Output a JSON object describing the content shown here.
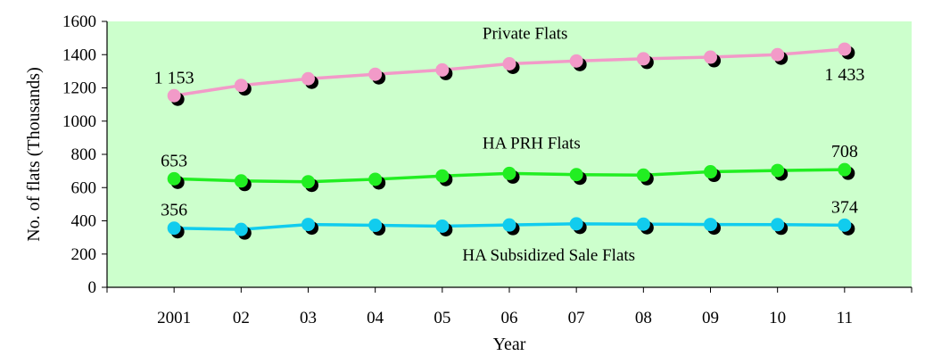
{
  "chart_data": {
    "type": "line",
    "categories": [
      "2001",
      "02",
      "03",
      "04",
      "05",
      "06",
      "07",
      "08",
      "09",
      "10",
      "11"
    ],
    "xlabel": "Year",
    "ylabel": "No. of flats (Thousands)",
    "ylim": [
      0,
      1600
    ],
    "yticks": [
      0,
      200,
      400,
      600,
      800,
      1000,
      1200,
      1400,
      1600
    ],
    "grid": false,
    "legend": "none",
    "plot_background": "#ccffcc",
    "series": [
      {
        "name": "Private Flats",
        "color": "#f29ac8",
        "values": [
          1153,
          1215,
          1255,
          1282,
          1308,
          1345,
          1362,
          1375,
          1385,
          1400,
          1433
        ],
        "labels": [
          {
            "index": 0,
            "text": "1 153"
          },
          {
            "index": 10,
            "text": "1 433"
          }
        ]
      },
      {
        "name": "HA PRH Flats",
        "color": "#22ee22",
        "values": [
          653,
          640,
          635,
          650,
          670,
          685,
          678,
          675,
          695,
          703,
          708
        ],
        "labels": [
          {
            "index": 0,
            "text": "653"
          },
          {
            "index": 10,
            "text": "708"
          }
        ]
      },
      {
        "name": "HA Subsidized Sale Flats",
        "color": "#11ccee",
        "values": [
          356,
          348,
          378,
          373,
          368,
          375,
          382,
          380,
          378,
          377,
          374
        ],
        "labels": [
          {
            "index": 0,
            "text": "356"
          },
          {
            "index": 10,
            "text": "374"
          }
        ]
      }
    ]
  }
}
